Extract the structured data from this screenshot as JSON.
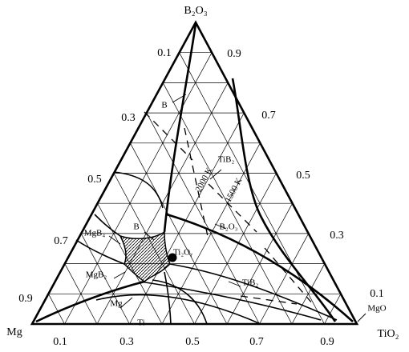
{
  "vertices": {
    "top": "B₂O₃",
    "left": "Mg",
    "right": "TiO₂"
  },
  "left_ticks": [
    "0.1",
    "0.3",
    "0.5",
    "0.7",
    "0.9"
  ],
  "right_ticks": [
    "0.9",
    "0.7",
    "0.5",
    "0.3",
    "0.1"
  ],
  "bottom_ticks": [
    "0.1",
    "0.3",
    "0.5",
    "0.7",
    "0.9"
  ],
  "phase_labels": [
    "B",
    "TiB₂",
    "2000 K",
    "1500 K",
    "B",
    "B₂O₃",
    "MgB₄",
    "Ti₂Oᵧ",
    "MgB₂",
    "TiB₂",
    "Mg",
    "Ti",
    "MgO"
  ]
}
